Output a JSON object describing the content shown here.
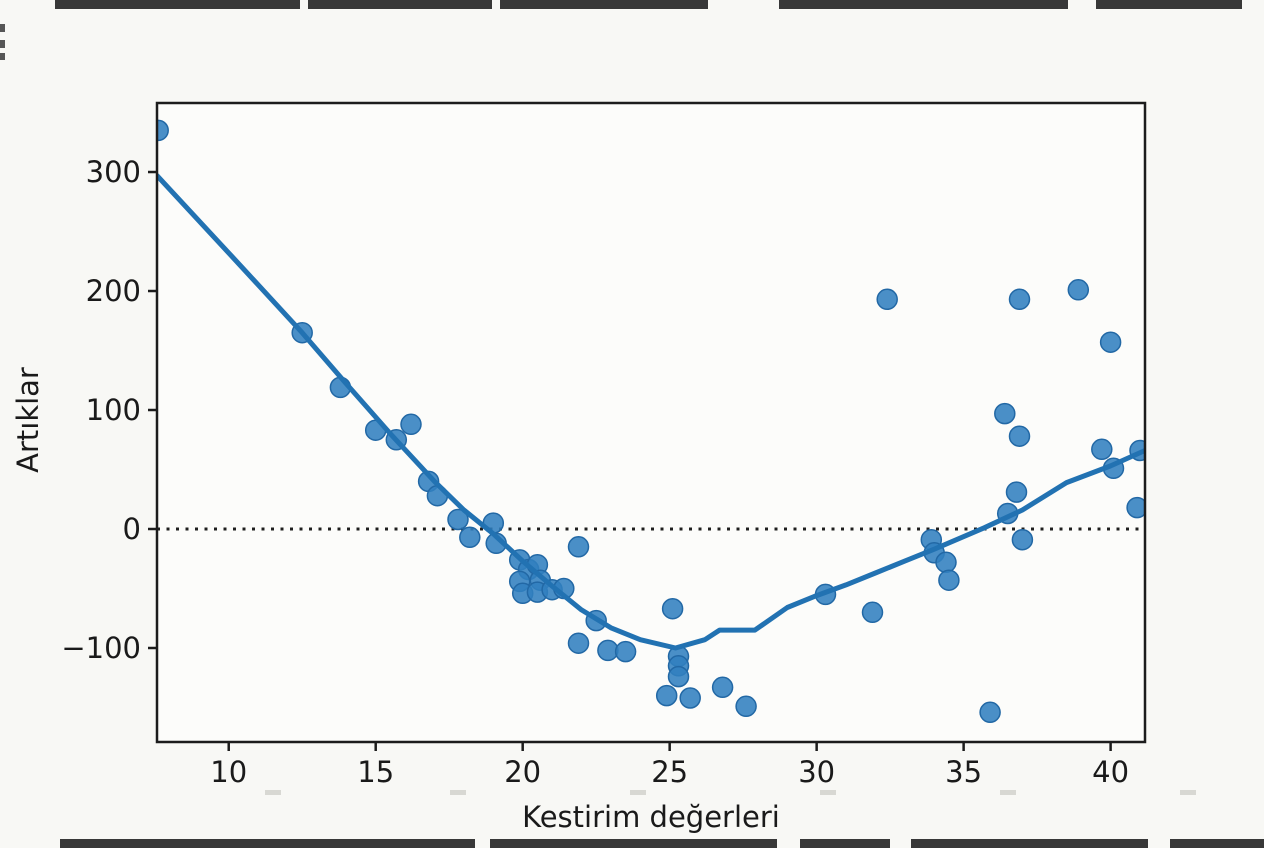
{
  "chart_data": {
    "type": "scatter",
    "title": "",
    "xlabel": "Kestirim değerleri",
    "ylabel": "Artıklar",
    "xlim": [
      7.56,
      41.17
    ],
    "ylim": [
      -179,
      358
    ],
    "grid": false,
    "legend": null,
    "x_tick_values": [
      10,
      15,
      20,
      25,
      30,
      35,
      40
    ],
    "x_tick_labels": [
      "10",
      "15",
      "20",
      "25",
      "30",
      "35",
      "40"
    ],
    "y_tick_values": [
      300,
      200,
      100,
      0,
      -100
    ],
    "y_tick_labels": [
      "300",
      "200",
      "100",
      "0",
      "−100"
    ],
    "zero_line": {
      "y": 0,
      "style": "dotted",
      "color": "#1f1f1f"
    },
    "point_color": "#3180bf",
    "point_edge_color": "#2268a5",
    "line_color": "#2272b2",
    "points": [
      [
        7.6,
        335
      ],
      [
        12.5,
        165
      ],
      [
        13.8,
        119
      ],
      [
        15.0,
        83
      ],
      [
        15.7,
        75
      ],
      [
        16.2,
        88
      ],
      [
        16.8,
        40
      ],
      [
        17.1,
        28
      ],
      [
        17.8,
        8
      ],
      [
        18.2,
        -7
      ],
      [
        19.0,
        5
      ],
      [
        19.1,
        -12
      ],
      [
        19.9,
        -26
      ],
      [
        20.2,
        -34
      ],
      [
        19.9,
        -44
      ],
      [
        20.0,
        -54
      ],
      [
        20.5,
        -30
      ],
      [
        20.6,
        -43
      ],
      [
        20.5,
        -53
      ],
      [
        21.0,
        -51
      ],
      [
        21.4,
        -50
      ],
      [
        21.9,
        -15
      ],
      [
        22.5,
        -77
      ],
      [
        21.9,
        -96
      ],
      [
        22.9,
        -102
      ],
      [
        23.5,
        -103
      ],
      [
        25.1,
        -67
      ],
      [
        25.3,
        -107
      ],
      [
        25.3,
        -115
      ],
      [
        25.3,
        -124
      ],
      [
        24.9,
        -140
      ],
      [
        25.7,
        -142
      ],
      [
        26.8,
        -133
      ],
      [
        27.6,
        -149
      ],
      [
        30.3,
        -55
      ],
      [
        31.9,
        -70
      ],
      [
        32.4,
        193
      ],
      [
        33.9,
        -9
      ],
      [
        34.0,
        -20
      ],
      [
        34.4,
        -28
      ],
      [
        34.5,
        -43
      ],
      [
        35.9,
        -154
      ],
      [
        36.4,
        97
      ],
      [
        36.5,
        13
      ],
      [
        36.8,
        31
      ],
      [
        36.9,
        193
      ],
      [
        36.9,
        78
      ],
      [
        37.0,
        -9
      ],
      [
        38.9,
        201
      ],
      [
        39.7,
        67
      ],
      [
        40.0,
        157
      ],
      [
        40.1,
        51
      ],
      [
        40.9,
        18
      ],
      [
        41.0,
        66
      ]
    ],
    "lowess_line": [
      [
        7.56,
        297
      ],
      [
        10.0,
        232
      ],
      [
        12.5,
        165
      ],
      [
        14.0,
        122
      ],
      [
        15.5,
        80
      ],
      [
        17.0,
        40
      ],
      [
        18.0,
        16
      ],
      [
        19.0,
        -4
      ],
      [
        20.0,
        -27
      ],
      [
        21.0,
        -48
      ],
      [
        22.0,
        -68
      ],
      [
        23.0,
        -83
      ],
      [
        24.0,
        -93
      ],
      [
        25.2,
        -100
      ],
      [
        26.2,
        -93
      ],
      [
        26.7,
        -85
      ],
      [
        27.9,
        -85
      ],
      [
        29.0,
        -66
      ],
      [
        30.0,
        -56
      ],
      [
        31.0,
        -47
      ],
      [
        32.0,
        -37
      ],
      [
        33.0,
        -27
      ],
      [
        34.0,
        -17
      ],
      [
        35.7,
        1
      ],
      [
        37.0,
        16
      ],
      [
        38.5,
        39
      ],
      [
        40.0,
        53
      ],
      [
        41.17,
        66
      ]
    ]
  }
}
